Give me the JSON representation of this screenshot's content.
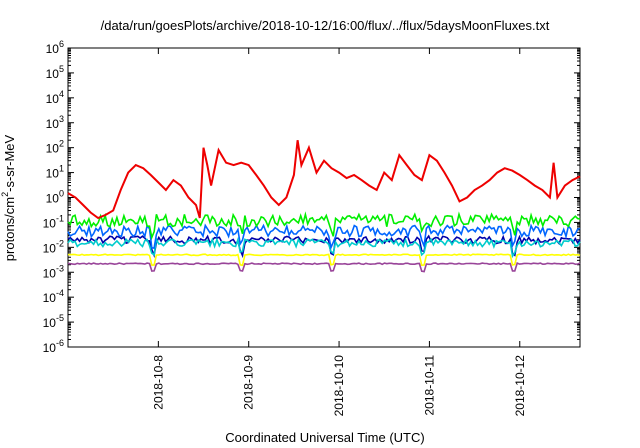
{
  "chart_data": {
    "type": "line",
    "title": "/data/run/goesPlots/archive/2018-10-12/16:00/flux/../flux/5daysMoonFluxes.txt",
    "xlabel": "Coordinated Universal Time (UTC)",
    "ylabel_parts": [
      "protons/cm",
      "2",
      "-s-sr-MeV"
    ],
    "x_range": [
      "2018-10-07 00:00",
      "2018-10-12 16:00"
    ],
    "x_ticks": [
      "2018-10-8",
      "2018-10-9",
      "2018-10-10",
      "2018-10-11",
      "2018-10-12"
    ],
    "y_scale": "log",
    "ylim": [
      1e-06,
      1000000.0
    ],
    "y_ticks": [
      {
        "base": "10",
        "exp": "-6"
      },
      {
        "base": "10",
        "exp": "-5"
      },
      {
        "base": "10",
        "exp": "-4"
      },
      {
        "base": "10",
        "exp": "-3"
      },
      {
        "base": "10",
        "exp": "-2"
      },
      {
        "base": "10",
        "exp": "-1"
      },
      {
        "base": "10",
        "exp": "0"
      },
      {
        "base": "10",
        "exp": "1"
      },
      {
        "base": "10",
        "exp": "2"
      },
      {
        "base": "10",
        "exp": "3"
      },
      {
        "base": "10",
        "exp": "4"
      },
      {
        "base": "10",
        "exp": "5"
      },
      {
        "base": "10",
        "exp": "6"
      }
    ],
    "grid": false,
    "legend": "none",
    "series": [
      {
        "color": "#ee0000",
        "points": [
          [
            "2018-10-07 00:00",
            1.5
          ],
          [
            "2018-10-07 02:00",
            1.0
          ],
          [
            "2018-10-07 04:00",
            0.5
          ],
          [
            "2018-10-07 06:00",
            0.25
          ],
          [
            "2018-10-07 08:00",
            0.15
          ],
          [
            "2018-10-07 10:00",
            0.2
          ],
          [
            "2018-10-07 12:00",
            0.3
          ],
          [
            "2018-10-07 14:00",
            2.0
          ],
          [
            "2018-10-07 16:00",
            10.0
          ],
          [
            "2018-10-07 18:00",
            20.0
          ],
          [
            "2018-10-07 20:00",
            15.0
          ],
          [
            "2018-10-07 22:00",
            8.0
          ],
          [
            "2018-10-08 00:00",
            4.0
          ],
          [
            "2018-10-08 02:00",
            2.0
          ],
          [
            "2018-10-08 04:00",
            5.0
          ],
          [
            "2018-10-08 06:00",
            3.0
          ],
          [
            "2018-10-08 08:00",
            1.0
          ],
          [
            "2018-10-08 10:00",
            0.5
          ],
          [
            "2018-10-08 11:00",
            0.15
          ],
          [
            "2018-10-08 12:00",
            100.0
          ],
          [
            "2018-10-08 13:00",
            20.0
          ],
          [
            "2018-10-08 14:00",
            3.0
          ],
          [
            "2018-10-08 16:00",
            80.0
          ],
          [
            "2018-10-08 18:00",
            25.0
          ],
          [
            "2018-10-08 20:00",
            20.0
          ],
          [
            "2018-10-08 22:00",
            25.0
          ],
          [
            "2018-10-09 00:00",
            20.0
          ],
          [
            "2018-10-09 02:00",
            8.0
          ],
          [
            "2018-10-09 04:00",
            3.0
          ],
          [
            "2018-10-09 06:00",
            1.0
          ],
          [
            "2018-10-09 08:00",
            0.5
          ],
          [
            "2018-10-09 10:00",
            1.0
          ],
          [
            "2018-10-09 12:00",
            8.0
          ],
          [
            "2018-10-09 13:00",
            200.0
          ],
          [
            "2018-10-09 14:00",
            20.0
          ],
          [
            "2018-10-09 16:00",
            100.0
          ],
          [
            "2018-10-09 18:00",
            10.0
          ],
          [
            "2018-10-09 20:00",
            30.0
          ],
          [
            "2018-10-09 22:00",
            15.0
          ],
          [
            "2018-10-10 00:00",
            10.0
          ],
          [
            "2018-10-10 02:00",
            6.0
          ],
          [
            "2018-10-10 04:00",
            8.0
          ],
          [
            "2018-10-10 06:00",
            5.0
          ],
          [
            "2018-10-10 08:00",
            3.0
          ],
          [
            "2018-10-10 10:00",
            2.0
          ],
          [
            "2018-10-10 12:00",
            10.0
          ],
          [
            "2018-10-10 14:00",
            5.0
          ],
          [
            "2018-10-10 16:00",
            50.0
          ],
          [
            "2018-10-10 18:00",
            20.0
          ],
          [
            "2018-10-10 20:00",
            8.0
          ],
          [
            "2018-10-10 22:00",
            5.0
          ],
          [
            "2018-10-11 00:00",
            50.0
          ],
          [
            "2018-10-11 02:00",
            30.0
          ],
          [
            "2018-10-11 04:00",
            10.0
          ],
          [
            "2018-10-11 06:00",
            3.0
          ],
          [
            "2018-10-11 08:00",
            0.7
          ],
          [
            "2018-10-11 10:00",
            1.0
          ],
          [
            "2018-10-11 12:00",
            2.0
          ],
          [
            "2018-10-11 14:00",
            3.0
          ],
          [
            "2018-10-11 16:00",
            5.0
          ],
          [
            "2018-10-11 18:00",
            10.0
          ],
          [
            "2018-10-11 20:00",
            15.0
          ],
          [
            "2018-10-11 22:00",
            12.0
          ],
          [
            "2018-10-12 00:00",
            8.0
          ],
          [
            "2018-10-12 02:00",
            5.0
          ],
          [
            "2018-10-12 04:00",
            3.0
          ],
          [
            "2018-10-12 06:00",
            2.0
          ],
          [
            "2018-10-12 08:00",
            1.0
          ],
          [
            "2018-10-12 09:00",
            25.0
          ],
          [
            "2018-10-12 10:00",
            1.0
          ],
          [
            "2018-10-12 12:00",
            3.0
          ],
          [
            "2018-10-12 14:00",
            5.0
          ],
          [
            "2018-10-12 16:00",
            7.0
          ]
        ]
      },
      {
        "color": "#00ee00",
        "level": 0.12,
        "spread": 0.5,
        "dips": 0.35
      },
      {
        "color": "#0066ff",
        "level": 0.045,
        "spread": 0.45,
        "dips": 0.3
      },
      {
        "color": "#00cccc",
        "level": 0.015,
        "spread": 0.3,
        "dips": 0.35
      },
      {
        "color": "#0000aa",
        "level": 0.02,
        "spread": 0.3,
        "dips": 0.3
      },
      {
        "color": "#ffff00",
        "level": 0.005,
        "spread": 0.05,
        "dips": 0.4
      },
      {
        "color": "#994499",
        "level": 0.0022,
        "spread": 0.05,
        "dips": 0.5
      }
    ]
  }
}
